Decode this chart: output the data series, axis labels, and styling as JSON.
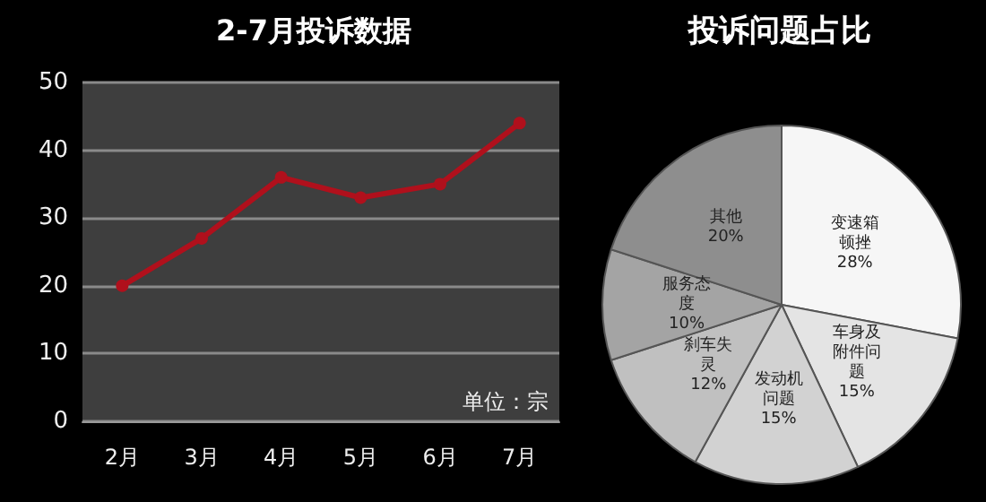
{
  "chart_data": [
    {
      "type": "line",
      "title": "2-7月投诉数据",
      "categories": [
        "2月",
        "3月",
        "4月",
        "5月",
        "6月",
        "7月"
      ],
      "series": [
        {
          "color": "#b0101c",
          "values": [
            20,
            27,
            36,
            33,
            35,
            44
          ]
        }
      ],
      "ylim": [
        0,
        50
      ],
      "yticks": [
        0,
        10,
        20,
        30,
        40,
        50
      ],
      "grid": "y",
      "marker": "circle",
      "line_style": "solid",
      "annotations": [
        "单位：宗"
      ]
    },
    {
      "type": "pie",
      "title": "投诉问题占比",
      "categories": [
        "变速箱顿挫",
        "车身及附件问题",
        "发动机问题",
        "刹车失灵",
        "服务态度",
        "其他"
      ],
      "values": [
        28,
        15,
        15,
        12,
        10,
        20
      ],
      "value_labels": [
        "28%",
        "15%",
        "15%",
        "12%",
        "10%",
        "20%"
      ],
      "colors": [
        "#f6f6f6",
        "#e4e4e4",
        "#d2d2d2",
        "#c0c0c0",
        "#a4a4a4",
        "#8e8e8e"
      ]
    }
  ]
}
